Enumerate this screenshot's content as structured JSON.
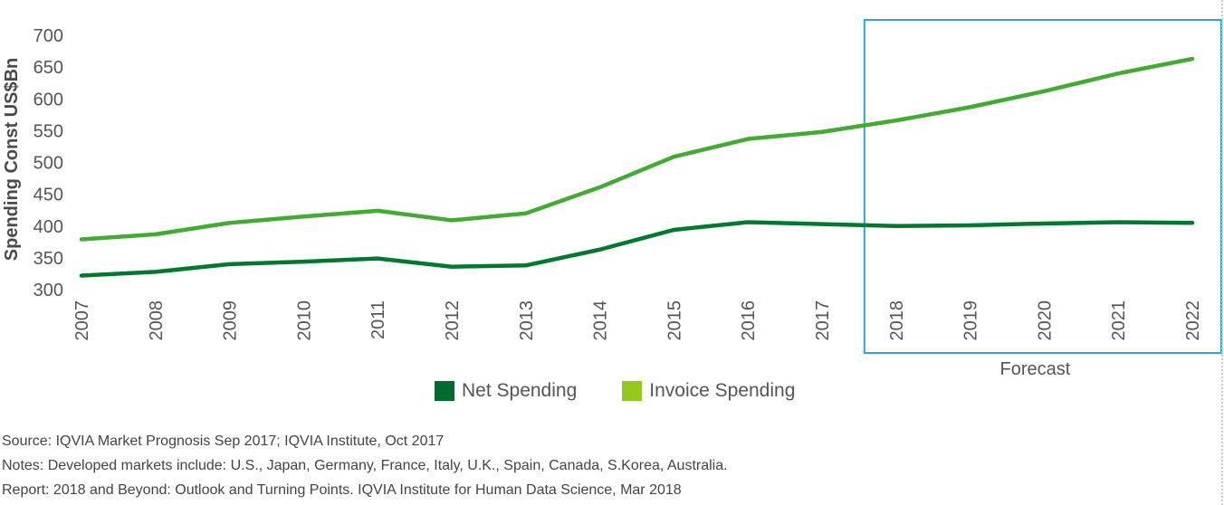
{
  "chart_data": {
    "type": "line",
    "ylabel": "Spending Const US$Bn",
    "xlabel": "",
    "ylim": [
      300,
      700
    ],
    "yticks": [
      300,
      350,
      400,
      450,
      500,
      550,
      600,
      650,
      700
    ],
    "categories": [
      "2007",
      "2008",
      "2009",
      "2010",
      "2011",
      "2012",
      "2013",
      "2014",
      "2015",
      "2016",
      "2017",
      "2018",
      "2019",
      "2020",
      "2021",
      "2022"
    ],
    "series": [
      {
        "name": "Net Spending",
        "color": "#00792e",
        "values": [
          322,
          328,
          340,
          344,
          349,
          336,
          338,
          363,
          394,
          406,
          403,
          400,
          401,
          404,
          406,
          405
        ]
      },
      {
        "name": "Invoice Spending",
        "color": "#43aa34",
        "values": [
          379,
          387,
          405,
          415,
          424,
          409,
          420,
          461,
          509,
          537,
          548,
          566,
          587,
          612,
          640,
          663
        ]
      }
    ],
    "forecast_box": {
      "label": "Forecast",
      "start": "2018",
      "end": "2022",
      "color": "#2aa6d1"
    },
    "legend": {
      "position": "bottom-center",
      "items": [
        {
          "label": "Net Spending",
          "color": "#006b2b"
        },
        {
          "label": "Invoice Spending",
          "color": "#92c91d"
        }
      ]
    }
  },
  "notes": {
    "source": "Source: IQVIA Market Prognosis Sep 2017; IQVIA Institute, Oct 2017",
    "notes": "Notes: Developed markets include: U.S., Japan, Germany, France, Italy, U.K., Spain, Canada, S.Korea, Australia.",
    "report": "Report: 2018 and Beyond: Outlook and Turning Points. IQVIA Institute for Human Data Science, Mar 2018"
  }
}
